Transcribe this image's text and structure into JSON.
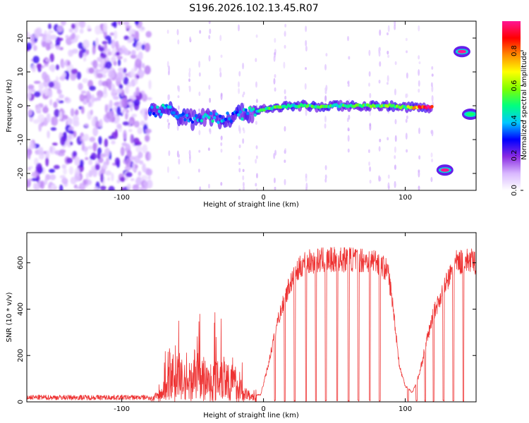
{
  "title": "S196.2026.102.13.45.R07",
  "chart_data": [
    {
      "type": "heatmap",
      "name": "spectrogram",
      "xlabel": "Height of straight line (km)",
      "ylabel": "Frequency (Hz)",
      "xlim": [
        -167,
        150
      ],
      "ylim": [
        -25,
        25
      ],
      "x_ticks": [
        -100,
        0,
        100
      ],
      "x_tick_labels": [
        "-100",
        "0",
        "100"
      ],
      "y_ticks": [
        -20,
        -10,
        0,
        10,
        20
      ],
      "y_tick_labels": [
        "-20",
        "-10",
        "0",
        "10",
        "20"
      ],
      "colorbar": {
        "label": "Normalized spectral amplitude",
        "range": [
          0,
          0.97
        ],
        "ticks": [
          0.0,
          0.2,
          0.4,
          0.6,
          0.8
        ],
        "tick_labels": [
          "0.0",
          "0.2",
          "0.4",
          "0.6",
          "0.8"
        ],
        "colors": [
          "#ffffff",
          "#d9b8ff",
          "#8a2be2",
          "#0000ff",
          "#00c8ff",
          "#00ff7f",
          "#7fff00",
          "#ffff00",
          "#ff8c00",
          "#ff0000",
          "#ff1493"
        ]
      },
      "noise_region": {
        "x_range": [
          -167,
          -80
        ],
        "y_range": [
          -25,
          25
        ],
        "level": 0.2
      },
      "track": [
        {
          "x": -80,
          "y": -2,
          "amp": 0.35
        },
        {
          "x": -70,
          "y": -1,
          "amp": 0.45
        },
        {
          "x": -60,
          "y": -3,
          "amp": 0.4
        },
        {
          "x": -50,
          "y": -4,
          "amp": 0.35
        },
        {
          "x": -40,
          "y": -3,
          "amp": 0.45
        },
        {
          "x": -30,
          "y": -4,
          "amp": 0.4
        },
        {
          "x": -20,
          "y": -3,
          "amp": 0.35
        },
        {
          "x": -10,
          "y": -2,
          "amp": 0.45
        },
        {
          "x": 0,
          "y": -1,
          "amp": 0.5
        },
        {
          "x": 10,
          "y": -0.5,
          "amp": 0.55
        },
        {
          "x": 20,
          "y": 0,
          "amp": 0.5
        },
        {
          "x": 30,
          "y": 0,
          "amp": 0.5
        },
        {
          "x": 40,
          "y": -0.5,
          "amp": 0.55
        },
        {
          "x": 50,
          "y": 0,
          "amp": 0.5
        },
        {
          "x": 60,
          "y": 0,
          "amp": 0.5
        },
        {
          "x": 70,
          "y": 0,
          "amp": 0.55
        },
        {
          "x": 80,
          "y": 0,
          "amp": 0.55
        },
        {
          "x": 90,
          "y": 0,
          "amp": 0.6
        },
        {
          "x": 100,
          "y": -0.5,
          "amp": 0.5
        },
        {
          "x": 110,
          "y": -0.5,
          "amp": 0.95
        },
        {
          "x": 119,
          "y": -0.5,
          "amp": 0.95
        }
      ],
      "blobs": [
        {
          "x": 128,
          "y": -19,
          "amp": 0.97
        },
        {
          "x": 140,
          "y": 16,
          "amp": 0.97
        },
        {
          "x": 146,
          "y": -2.5,
          "amp": 0.5
        }
      ]
    },
    {
      "type": "line",
      "name": "snr",
      "xlabel": "Height of straight line (km)",
      "ylabel": "SNR (10 * v/v)",
      "xlim": [
        -167,
        150
      ],
      "ylim": [
        0,
        730
      ],
      "x_ticks": [
        -100,
        0,
        100
      ],
      "x_tick_labels": [
        "-100",
        "0",
        "100"
      ],
      "y_ticks": [
        0,
        200,
        400,
        600
      ],
      "y_tick_labels": [
        "0",
        "200",
        "400",
        "600"
      ],
      "color": "#ee3333",
      "envelope": [
        {
          "x": -167,
          "y": 20
        },
        {
          "x": -80,
          "y": 20
        },
        {
          "x": -72,
          "y": 60
        },
        {
          "x": -66,
          "y": 180
        },
        {
          "x": -62,
          "y": 250
        },
        {
          "x": -55,
          "y": 150
        },
        {
          "x": -45,
          "y": 220
        },
        {
          "x": -38,
          "y": 160
        },
        {
          "x": -30,
          "y": 250
        },
        {
          "x": -20,
          "y": 140
        },
        {
          "x": -12,
          "y": 60
        },
        {
          "x": -6,
          "y": 30
        },
        {
          "x": -2,
          "y": 30
        },
        {
          "x": 3,
          "y": 150
        },
        {
          "x": 10,
          "y": 350
        },
        {
          "x": 18,
          "y": 500
        },
        {
          "x": 28,
          "y": 600
        },
        {
          "x": 40,
          "y": 610
        },
        {
          "x": 60,
          "y": 615
        },
        {
          "x": 80,
          "y": 610
        },
        {
          "x": 88,
          "y": 560
        },
        {
          "x": 92,
          "y": 380
        },
        {
          "x": 96,
          "y": 150
        },
        {
          "x": 100,
          "y": 70
        },
        {
          "x": 105,
          "y": 40
        },
        {
          "x": 110,
          "y": 120
        },
        {
          "x": 115,
          "y": 260
        },
        {
          "x": 120,
          "y": 380
        },
        {
          "x": 128,
          "y": 500
        },
        {
          "x": 136,
          "y": 600
        },
        {
          "x": 145,
          "y": 610
        },
        {
          "x": 150,
          "y": 600
        }
      ],
      "dropouts": [
        8,
        15,
        22,
        30,
        37,
        44,
        52,
        60,
        67,
        75,
        82,
        102,
        108,
        114,
        120,
        127,
        134,
        141
      ]
    }
  ]
}
